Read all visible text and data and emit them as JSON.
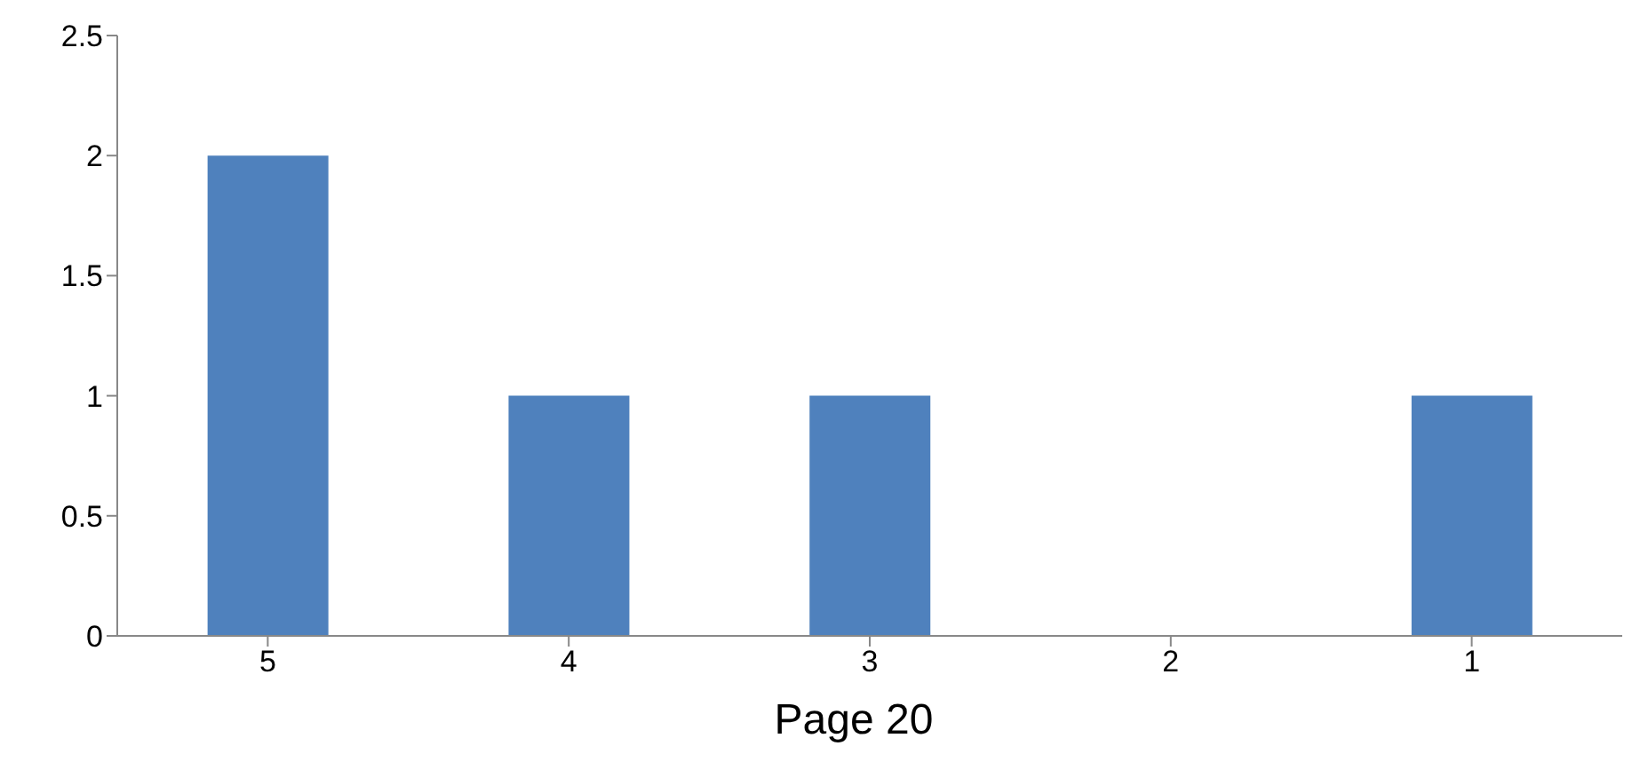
{
  "chart_data": {
    "type": "bar",
    "categories": [
      "5",
      "4",
      "3",
      "2",
      "1"
    ],
    "values": [
      2,
      1,
      1,
      0,
      1
    ],
    "color": "#4f81bd",
    "ylim": [
      0,
      2.5
    ],
    "yticks": [
      0,
      0.5,
      1,
      1.5,
      2,
      2.5
    ],
    "grid": false,
    "annotations": [
      "Page 20"
    ]
  }
}
